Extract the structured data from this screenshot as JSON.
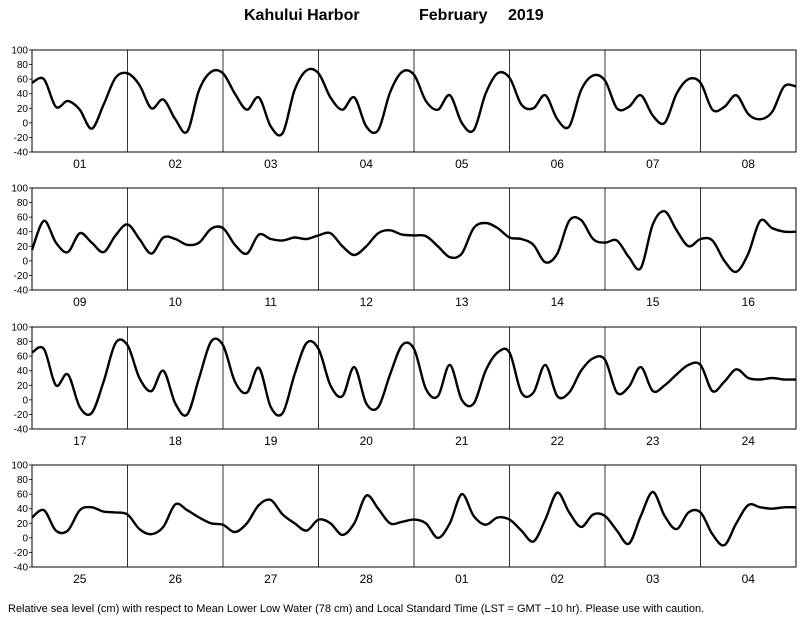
{
  "header": {
    "station": "Kahului Harbor",
    "month": "February",
    "year": "2019"
  },
  "footer": {
    "note": "Relative sea level (cm) with respect to Mean Lower Low Water (78 cm) and Local Standard Time (LST = GMT −10 hr). Please use with caution."
  },
  "chart_data": {
    "type": "line",
    "ylim": [
      -40,
      100
    ],
    "yticks": [
      -40,
      -20,
      0,
      20,
      40,
      60,
      80,
      100
    ],
    "grid": "vertical lines at day boundaries",
    "line_color": "#000000",
    "samples_per_day": 8,
    "sample_hours": [
      0,
      3,
      6,
      9,
      12,
      15,
      18,
      21
    ],
    "panels": [
      {
        "days": [
          "01",
          "02",
          "03",
          "04",
          "05",
          "06",
          "07",
          "08"
        ],
        "values": [
          [
            55,
            60,
            22,
            30,
            18,
            -8,
            25,
            62
          ],
          [
            68,
            52,
            20,
            32,
            5,
            -12,
            45,
            70
          ],
          [
            68,
            40,
            18,
            35,
            -5,
            -14,
            45,
            72
          ],
          [
            68,
            35,
            18,
            35,
            -5,
            -10,
            42,
            70
          ],
          [
            66,
            30,
            18,
            38,
            0,
            -10,
            40,
            68
          ],
          [
            62,
            25,
            20,
            38,
            5,
            -5,
            45,
            65
          ],
          [
            58,
            20,
            22,
            38,
            10,
            0,
            40,
            60
          ],
          [
            55,
            18,
            22,
            38,
            12,
            5,
            15,
            50
          ]
        ]
      },
      {
        "days": [
          "09",
          "10",
          "11",
          "12",
          "13",
          "14",
          "15",
          "16"
        ],
        "values": [
          [
            15,
            55,
            25,
            12,
            38,
            25,
            12,
            35
          ],
          [
            50,
            30,
            10,
            32,
            30,
            22,
            25,
            44
          ],
          [
            45,
            22,
            10,
            36,
            30,
            28,
            32,
            30
          ],
          [
            35,
            38,
            20,
            8,
            20,
            38,
            42,
            36
          ],
          [
            35,
            34,
            20,
            5,
            10,
            45,
            52,
            45
          ],
          [
            32,
            30,
            22,
            -2,
            10,
            55,
            56,
            30
          ],
          [
            25,
            28,
            5,
            -10,
            50,
            68,
            42,
            20
          ],
          [
            30,
            28,
            0,
            -15,
            10,
            55,
            45,
            40
          ]
        ]
      },
      {
        "days": [
          "17",
          "18",
          "19",
          "20",
          "21",
          "22",
          "23",
          "24"
        ],
        "values": [
          [
            65,
            70,
            20,
            35,
            -10,
            -18,
            25,
            78
          ],
          [
            75,
            30,
            12,
            40,
            -5,
            -20,
            30,
            80
          ],
          [
            75,
            25,
            10,
            44,
            -10,
            -18,
            35,
            78
          ],
          [
            70,
            20,
            5,
            45,
            -5,
            -10,
            35,
            75
          ],
          [
            70,
            15,
            5,
            48,
            0,
            -5,
            40,
            65
          ],
          [
            65,
            10,
            10,
            48,
            5,
            10,
            40,
            57
          ],
          [
            55,
            10,
            18,
            45,
            12,
            20,
            35,
            48
          ],
          [
            48,
            12,
            25,
            42,
            30,
            28,
            30,
            28
          ]
        ]
      },
      {
        "days": [
          "25",
          "26",
          "27",
          "28",
          "01",
          "02",
          "03",
          "04"
        ],
        "values": [
          [
            28,
            38,
            10,
            10,
            38,
            42,
            36,
            35
          ],
          [
            32,
            12,
            5,
            15,
            46,
            38,
            28,
            20
          ],
          [
            18,
            8,
            20,
            45,
            52,
            32,
            20,
            10
          ],
          [
            25,
            20,
            4,
            20,
            58,
            40,
            20,
            22
          ],
          [
            25,
            20,
            0,
            20,
            60,
            30,
            18,
            28
          ],
          [
            25,
            10,
            -5,
            25,
            62,
            35,
            15,
            32
          ],
          [
            30,
            10,
            -8,
            30,
            63,
            30,
            12,
            35
          ],
          [
            35,
            5,
            -10,
            20,
            45,
            42,
            40,
            42
          ]
        ]
      }
    ]
  }
}
